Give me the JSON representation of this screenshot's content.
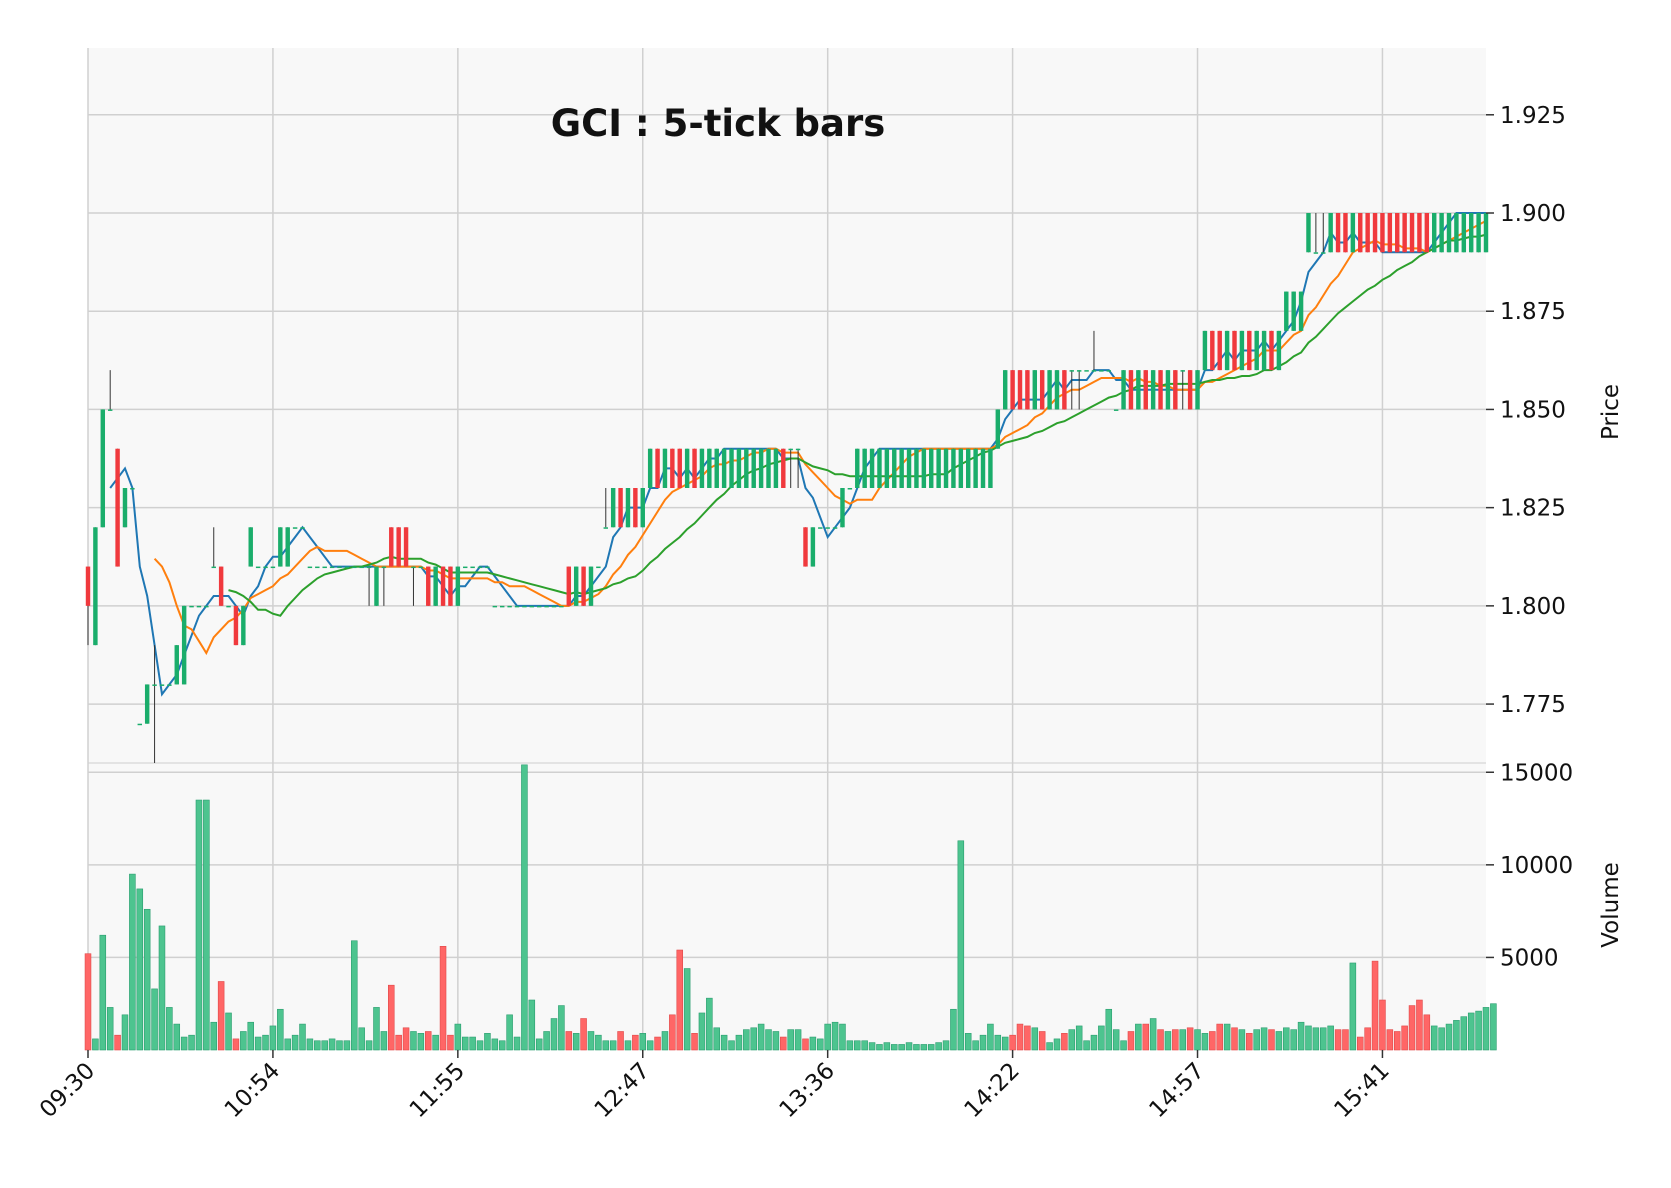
{
  "chart_data": {
    "type": "candlestick",
    "title": "GCI : 5-tick bars",
    "price_label": "Price",
    "volume_label": "Volume",
    "price_ylim": [
      1.76,
      1.942
    ],
    "volume_ylim": [
      0,
      15500
    ],
    "price_ticks": [
      "1.775",
      "1.800",
      "1.825",
      "1.850",
      "1.875",
      "1.900",
      "1.925"
    ],
    "price_tick_values": [
      1.775,
      1.8,
      1.825,
      1.85,
      1.875,
      1.9,
      1.925
    ],
    "volume_ticks": [
      "5000",
      "10000",
      "15000"
    ],
    "volume_tick_values": [
      5000,
      10000,
      15000
    ],
    "x_tick_labels": [
      "09:30",
      "10:54",
      "11:55",
      "12:47",
      "13:36",
      "14:22",
      "14:57",
      "15:41"
    ],
    "x_tick_bars": [
      0,
      25,
      50,
      75,
      100,
      125,
      150,
      175
    ],
    "colors": {
      "up": "#1aad6b",
      "down": "#f0393d",
      "volume_up": "#4dc48f",
      "volume_down": "#ff6666",
      "ma_fast": "#1f77b4",
      "ma_mid": "#ff7f0e",
      "ma_slow": "#2ca02c",
      "grid": "#d0d0d0",
      "panel_bg": "#f8f8f8"
    },
    "ohlc": [
      [
        1.81,
        1.81,
        1.79,
        1.8
      ],
      [
        1.79,
        1.82,
        1.79,
        1.82
      ],
      [
        1.82,
        1.85,
        1.82,
        1.85
      ],
      [
        1.85,
        1.86,
        1.85,
        1.85
      ],
      [
        1.84,
        1.84,
        1.81,
        1.81
      ],
      [
        1.82,
        1.83,
        1.82,
        1.83
      ],
      [
        1.83,
        1.83,
        1.83,
        1.83
      ],
      [
        1.77,
        1.77,
        1.77,
        1.77
      ],
      [
        1.77,
        1.78,
        1.77,
        1.78
      ],
      [
        1.78,
        1.79,
        1.76,
        1.78
      ],
      [
        1.78,
        1.78,
        1.78,
        1.78
      ],
      [
        1.78,
        1.78,
        1.78,
        1.78
      ],
      [
        1.78,
        1.79,
        1.78,
        1.79
      ],
      [
        1.78,
        1.8,
        1.78,
        1.8
      ],
      [
        1.8,
        1.8,
        1.8,
        1.8
      ],
      [
        1.8,
        1.8,
        1.8,
        1.8
      ],
      [
        1.8,
        1.8,
        1.8,
        1.8
      ],
      [
        1.81,
        1.82,
        1.81,
        1.81
      ],
      [
        1.81,
        1.81,
        1.8,
        1.8
      ],
      [
        1.8,
        1.8,
        1.8,
        1.8
      ],
      [
        1.8,
        1.8,
        1.79,
        1.79
      ],
      [
        1.79,
        1.8,
        1.79,
        1.8
      ],
      [
        1.81,
        1.82,
        1.81,
        1.82
      ],
      [
        1.81,
        1.81,
        1.81,
        1.81
      ],
      [
        1.81,
        1.81,
        1.81,
        1.81
      ],
      [
        1.81,
        1.81,
        1.81,
        1.81
      ],
      [
        1.81,
        1.82,
        1.81,
        1.82
      ],
      [
        1.81,
        1.82,
        1.81,
        1.82
      ],
      [
        1.82,
        1.82,
        1.82,
        1.82
      ],
      [
        1.82,
        1.82,
        1.82,
        1.82
      ],
      [
        1.81,
        1.81,
        1.81,
        1.81
      ],
      [
        1.81,
        1.81,
        1.81,
        1.81
      ],
      [
        1.81,
        1.81,
        1.81,
        1.81
      ],
      [
        1.81,
        1.81,
        1.81,
        1.81
      ],
      [
        1.81,
        1.81,
        1.81,
        1.81
      ],
      [
        1.81,
        1.81,
        1.81,
        1.81
      ],
      [
        1.81,
        1.81,
        1.81,
        1.81
      ],
      [
        1.81,
        1.81,
        1.81,
        1.81
      ],
      [
        1.81,
        1.81,
        1.8,
        1.81
      ],
      [
        1.8,
        1.81,
        1.8,
        1.81
      ],
      [
        1.81,
        1.81,
        1.8,
        1.81
      ],
      [
        1.82,
        1.82,
        1.81,
        1.81
      ],
      [
        1.82,
        1.82,
        1.81,
        1.81
      ],
      [
        1.82,
        1.82,
        1.81,
        1.81
      ],
      [
        1.81,
        1.81,
        1.8,
        1.81
      ],
      [
        1.81,
        1.81,
        1.81,
        1.81
      ],
      [
        1.81,
        1.81,
        1.8,
        1.8
      ],
      [
        1.8,
        1.81,
        1.8,
        1.81
      ],
      [
        1.81,
        1.81,
        1.8,
        1.8
      ],
      [
        1.81,
        1.81,
        1.8,
        1.8
      ],
      [
        1.8,
        1.81,
        1.8,
        1.81
      ],
      [
        1.81,
        1.81,
        1.81,
        1.81
      ],
      [
        1.81,
        1.81,
        1.81,
        1.81
      ],
      [
        1.81,
        1.81,
        1.81,
        1.81
      ],
      [
        1.81,
        1.81,
        1.81,
        1.81
      ],
      [
        1.8,
        1.8,
        1.8,
        1.8
      ],
      [
        1.8,
        1.8,
        1.8,
        1.8
      ],
      [
        1.8,
        1.8,
        1.8,
        1.8
      ],
      [
        1.8,
        1.8,
        1.8,
        1.8
      ],
      [
        1.8,
        1.8,
        1.8,
        1.8
      ],
      [
        1.8,
        1.8,
        1.8,
        1.8
      ],
      [
        1.8,
        1.8,
        1.8,
        1.8
      ],
      [
        1.8,
        1.8,
        1.8,
        1.8
      ],
      [
        1.8,
        1.8,
        1.8,
        1.8
      ],
      [
        1.8,
        1.8,
        1.8,
        1.8
      ],
      [
        1.81,
        1.81,
        1.8,
        1.8
      ],
      [
        1.8,
        1.81,
        1.8,
        1.81
      ],
      [
        1.81,
        1.81,
        1.8,
        1.8
      ],
      [
        1.8,
        1.81,
        1.8,
        1.81
      ],
      [
        1.81,
        1.81,
        1.81,
        1.81
      ],
      [
        1.82,
        1.83,
        1.82,
        1.82
      ],
      [
        1.82,
        1.83,
        1.82,
        1.83
      ],
      [
        1.83,
        1.83,
        1.82,
        1.82
      ],
      [
        1.82,
        1.83,
        1.82,
        1.83
      ],
      [
        1.83,
        1.83,
        1.82,
        1.82
      ],
      [
        1.82,
        1.83,
        1.82,
        1.83
      ],
      [
        1.83,
        1.84,
        1.83,
        1.84
      ],
      [
        1.84,
        1.84,
        1.83,
        1.83
      ],
      [
        1.83,
        1.84,
        1.83,
        1.84
      ],
      [
        1.84,
        1.84,
        1.83,
        1.83
      ],
      [
        1.84,
        1.84,
        1.83,
        1.83
      ],
      [
        1.83,
        1.84,
        1.83,
        1.84
      ],
      [
        1.84,
        1.84,
        1.83,
        1.83
      ],
      [
        1.83,
        1.84,
        1.83,
        1.84
      ],
      [
        1.83,
        1.84,
        1.83,
        1.84
      ],
      [
        1.83,
        1.84,
        1.83,
        1.84
      ],
      [
        1.83,
        1.84,
        1.83,
        1.84
      ],
      [
        1.83,
        1.84,
        1.83,
        1.84
      ],
      [
        1.83,
        1.84,
        1.83,
        1.84
      ],
      [
        1.83,
        1.84,
        1.83,
        1.84
      ],
      [
        1.83,
        1.84,
        1.83,
        1.84
      ],
      [
        1.83,
        1.84,
        1.83,
        1.84
      ],
      [
        1.83,
        1.84,
        1.83,
        1.84
      ],
      [
        1.83,
        1.84,
        1.83,
        1.84
      ],
      [
        1.84,
        1.84,
        1.83,
        1.83
      ],
      [
        1.84,
        1.84,
        1.83,
        1.84
      ],
      [
        1.84,
        1.84,
        1.83,
        1.84
      ],
      [
        1.82,
        1.82,
        1.81,
        1.81
      ],
      [
        1.81,
        1.82,
        1.81,
        1.82
      ],
      [
        1.82,
        1.82,
        1.82,
        1.82
      ],
      [
        1.82,
        1.82,
        1.82,
        1.82
      ],
      [
        1.82,
        1.82,
        1.82,
        1.82
      ],
      [
        1.82,
        1.83,
        1.82,
        1.83
      ],
      [
        1.83,
        1.83,
        1.83,
        1.83
      ],
      [
        1.83,
        1.84,
        1.83,
        1.84
      ],
      [
        1.83,
        1.84,
        1.83,
        1.84
      ],
      [
        1.83,
        1.84,
        1.83,
        1.84
      ],
      [
        1.83,
        1.84,
        1.83,
        1.84
      ],
      [
        1.83,
        1.84,
        1.83,
        1.84
      ],
      [
        1.83,
        1.84,
        1.83,
        1.84
      ],
      [
        1.83,
        1.84,
        1.83,
        1.84
      ],
      [
        1.83,
        1.84,
        1.83,
        1.84
      ],
      [
        1.83,
        1.84,
        1.83,
        1.84
      ],
      [
        1.83,
        1.84,
        1.83,
        1.84
      ],
      [
        1.83,
        1.84,
        1.83,
        1.84
      ],
      [
        1.83,
        1.84,
        1.83,
        1.84
      ],
      [
        1.83,
        1.84,
        1.83,
        1.84
      ],
      [
        1.83,
        1.84,
        1.83,
        1.84
      ],
      [
        1.83,
        1.84,
        1.83,
        1.84
      ],
      [
        1.83,
        1.84,
        1.83,
        1.84
      ],
      [
        1.83,
        1.84,
        1.83,
        1.84
      ],
      [
        1.83,
        1.84,
        1.83,
        1.84
      ],
      [
        1.83,
        1.84,
        1.83,
        1.84
      ],
      [
        1.84,
        1.85,
        1.84,
        1.85
      ],
      [
        1.85,
        1.86,
        1.85,
        1.86
      ],
      [
        1.86,
        1.86,
        1.85,
        1.85
      ],
      [
        1.86,
        1.86,
        1.85,
        1.85
      ],
      [
        1.86,
        1.86,
        1.85,
        1.85
      ],
      [
        1.85,
        1.86,
        1.85,
        1.86
      ],
      [
        1.86,
        1.86,
        1.85,
        1.85
      ],
      [
        1.85,
        1.86,
        1.85,
        1.86
      ],
      [
        1.85,
        1.86,
        1.85,
        1.86
      ],
      [
        1.86,
        1.86,
        1.85,
        1.85
      ],
      [
        1.86,
        1.86,
        1.85,
        1.86
      ],
      [
        1.86,
        1.86,
        1.85,
        1.86
      ],
      [
        1.86,
        1.86,
        1.86,
        1.86
      ],
      [
        1.86,
        1.87,
        1.86,
        1.86
      ],
      [
        1.86,
        1.86,
        1.86,
        1.86
      ],
      [
        1.86,
        1.86,
        1.86,
        1.86
      ],
      [
        1.85,
        1.85,
        1.85,
        1.85
      ],
      [
        1.85,
        1.86,
        1.85,
        1.86
      ],
      [
        1.86,
        1.86,
        1.85,
        1.85
      ],
      [
        1.85,
        1.86,
        1.85,
        1.86
      ],
      [
        1.86,
        1.86,
        1.85,
        1.85
      ],
      [
        1.85,
        1.86,
        1.85,
        1.86
      ],
      [
        1.86,
        1.86,
        1.85,
        1.85
      ],
      [
        1.85,
        1.86,
        1.85,
        1.86
      ],
      [
        1.86,
        1.86,
        1.85,
        1.85
      ],
      [
        1.86,
        1.86,
        1.85,
        1.86
      ],
      [
        1.86,
        1.86,
        1.85,
        1.85
      ],
      [
        1.85,
        1.86,
        1.85,
        1.86
      ],
      [
        1.86,
        1.87,
        1.86,
        1.87
      ],
      [
        1.87,
        1.87,
        1.86,
        1.86
      ],
      [
        1.87,
        1.87,
        1.86,
        1.86
      ],
      [
        1.86,
        1.87,
        1.86,
        1.87
      ],
      [
        1.87,
        1.87,
        1.86,
        1.86
      ],
      [
        1.86,
        1.87,
        1.86,
        1.87
      ],
      [
        1.87,
        1.87,
        1.86,
        1.86
      ],
      [
        1.86,
        1.87,
        1.86,
        1.87
      ],
      [
        1.86,
        1.87,
        1.86,
        1.87
      ],
      [
        1.87,
        1.87,
        1.86,
        1.86
      ],
      [
        1.86,
        1.87,
        1.86,
        1.87
      ],
      [
        1.87,
        1.88,
        1.87,
        1.88
      ],
      [
        1.87,
        1.88,
        1.87,
        1.88
      ],
      [
        1.87,
        1.88,
        1.87,
        1.88
      ],
      [
        1.89,
        1.9,
        1.89,
        1.9
      ],
      [
        1.89,
        1.9,
        1.89,
        1.89
      ],
      [
        1.89,
        1.9,
        1.89,
        1.89
      ],
      [
        1.89,
        1.9,
        1.89,
        1.9
      ],
      [
        1.9,
        1.9,
        1.89,
        1.89
      ],
      [
        1.9,
        1.9,
        1.89,
        1.89
      ],
      [
        1.89,
        1.9,
        1.89,
        1.9
      ],
      [
        1.9,
        1.9,
        1.89,
        1.89
      ],
      [
        1.9,
        1.9,
        1.89,
        1.89
      ],
      [
        1.9,
        1.9,
        1.89,
        1.89
      ],
      [
        1.9,
        1.9,
        1.89,
        1.89
      ],
      [
        1.9,
        1.9,
        1.89,
        1.89
      ],
      [
        1.9,
        1.9,
        1.89,
        1.89
      ],
      [
        1.9,
        1.9,
        1.89,
        1.89
      ],
      [
        1.9,
        1.9,
        1.89,
        1.89
      ],
      [
        1.9,
        1.9,
        1.89,
        1.89
      ],
      [
        1.9,
        1.9,
        1.89,
        1.89
      ],
      [
        1.89,
        1.9,
        1.89,
        1.9
      ],
      [
        1.89,
        1.9,
        1.89,
        1.9
      ],
      [
        1.89,
        1.9,
        1.89,
        1.9
      ],
      [
        1.89,
        1.9,
        1.89,
        1.9
      ],
      [
        1.89,
        1.9,
        1.89,
        1.9
      ],
      [
        1.89,
        1.9,
        1.89,
        1.9
      ],
      [
        1.89,
        1.9,
        1.89,
        1.9
      ],
      [
        1.89,
        1.9,
        1.89,
        1.9
      ]
    ],
    "volume": [
      5200,
      600,
      6200,
      2300,
      800,
      1900,
      9500,
      8700,
      7600,
      3300,
      6700,
      2300,
      1400,
      700,
      800,
      13500,
      13500,
      1500,
      3700,
      2000,
      600,
      1000,
      1500,
      700,
      800,
      1300,
      2200,
      600,
      800,
      1400,
      600,
      500,
      500,
      600,
      500,
      500,
      5900,
      1200,
      500,
      2300,
      1000,
      3500,
      800,
      1200,
      1000,
      900,
      1000,
      800,
      5600,
      800,
      1400,
      700,
      700,
      500,
      900,
      600,
      500,
      1900,
      700,
      15400,
      2700,
      600,
      1000,
      1700,
      2400,
      1000,
      900,
      1700,
      1000,
      800,
      500,
      500,
      1000,
      500,
      800,
      900,
      500,
      700,
      1000,
      1900,
      5400,
      4400,
      900,
      2000,
      2800,
      1200,
      800,
      500,
      800,
      1100,
      1200,
      1400,
      1100,
      1000,
      700,
      1100,
      1100,
      600,
      700,
      600,
      1400,
      1500,
      1400,
      500,
      500,
      500,
      400,
      300,
      400,
      300,
      300,
      400,
      300,
      300,
      300,
      400,
      500,
      2200,
      11300,
      900,
      500,
      800,
      1400,
      800,
      700,
      800,
      1400,
      1300,
      1200,
      1000,
      400,
      600,
      900,
      1100,
      1300,
      500,
      800,
      1300,
      2200,
      1100,
      500,
      1000,
      1400,
      1400,
      1700,
      1100,
      1000,
      1100,
      1100,
      1200,
      1100,
      900,
      1000,
      1400,
      1400,
      1200,
      1100,
      900,
      1100,
      1200,
      1100,
      1000,
      1200,
      1100,
      1500,
      1300,
      1200,
      1200,
      1300,
      1100,
      1100,
      4700,
      700,
      1200,
      4800,
      2700,
      1100,
      1000,
      1300,
      2400,
      2700,
      1900,
      1300,
      1200,
      1400,
      1600,
      1800,
      2000,
      2100,
      2300,
      2500
    ]
  }
}
